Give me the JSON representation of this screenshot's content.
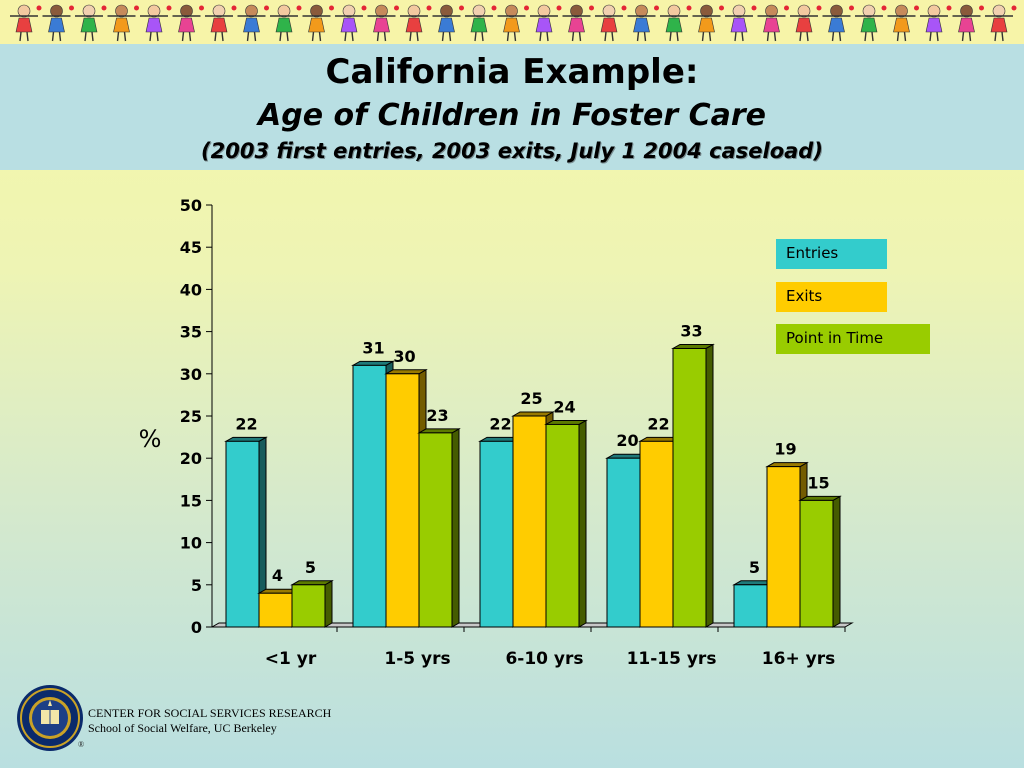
{
  "slide": {
    "title": "California Example:",
    "subtitle": "Age of Children in Foster Care",
    "note": "(2003 first entries, 2003 exits, July 1 2004 caseload)"
  },
  "legend": [
    {
      "label": "Entries",
      "color": "#33cccc"
    },
    {
      "label": "Exits",
      "color": "#ffcc00"
    },
    {
      "label": "Point in Time",
      "color": "#99cc00"
    }
  ],
  "chart_data": {
    "type": "bar",
    "categories": [
      "<1 yr",
      "1-5 yrs",
      "6-10 yrs",
      "11-15 yrs",
      "16+ yrs"
    ],
    "series": [
      {
        "name": "Entries",
        "values": [
          22,
          31,
          22,
          20,
          5
        ],
        "color": "#33cccc"
      },
      {
        "name": "Exits",
        "values": [
          4,
          30,
          25,
          22,
          19
        ],
        "color": "#ffcc00"
      },
      {
        "name": "Point in Time",
        "values": [
          5,
          23,
          24,
          33,
          15
        ],
        "color": "#99cc00"
      }
    ],
    "ylabel": "%",
    "ylim": [
      0,
      50
    ],
    "yticks": [
      0,
      5,
      10,
      15,
      20,
      25,
      30,
      35,
      40,
      45,
      50
    ],
    "grid": false,
    "legend_position": "right"
  },
  "footer": {
    "line1": "CENTER FOR SOCIAL SERVICES RESEARCH",
    "line2": "School of Social Welfare, UC Berkeley",
    "registered": "®"
  }
}
